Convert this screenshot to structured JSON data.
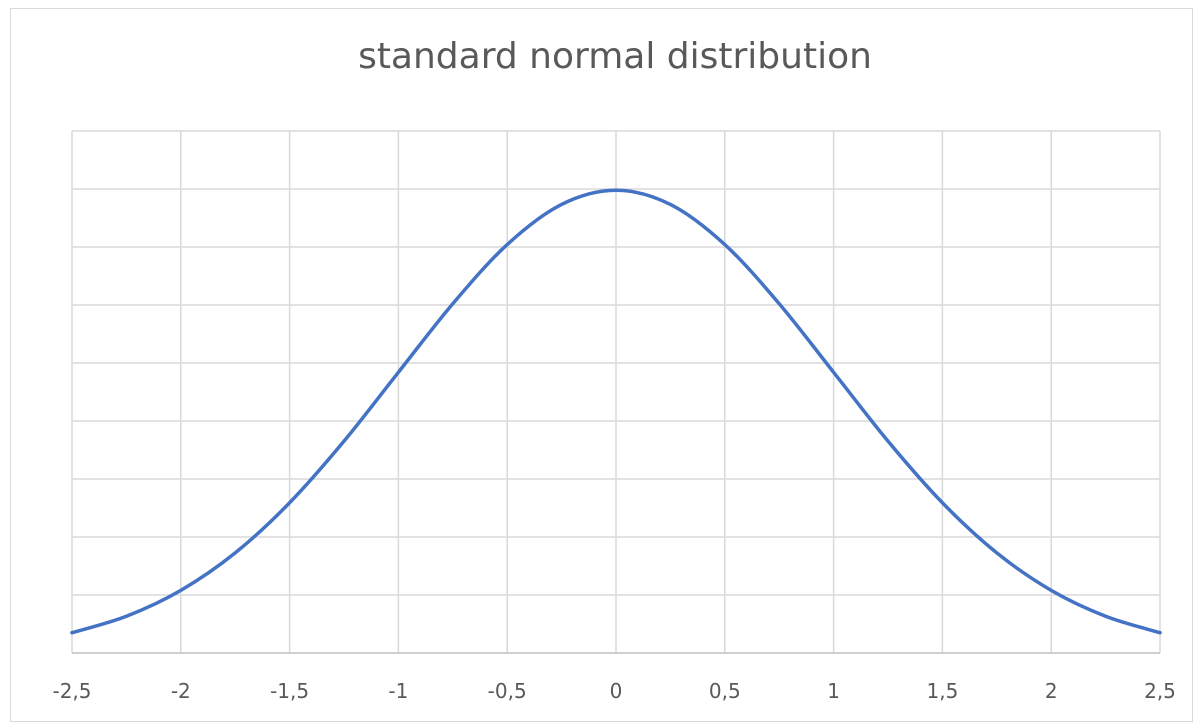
{
  "chart_data": {
    "type": "line",
    "title": "standard normal distribution",
    "xlabel": "",
    "ylabel": "",
    "x_tick_labels": [
      "-2,5",
      "-2",
      "-1,5",
      "-1",
      "-0,5",
      "0",
      "0,5",
      "1",
      "1,5",
      "2",
      "2,5"
    ],
    "xlim": [
      -2.5,
      2.5
    ],
    "ylim": [
      0,
      0.45
    ],
    "y_gridline_step": 0.05,
    "grid": true,
    "legend": "none",
    "series": [
      {
        "color": "#4472c4",
        "x": [
          -2.5,
          -2.25,
          -2,
          -1.75,
          -1.5,
          -1.25,
          -1,
          -0.75,
          -0.5,
          -0.25,
          0,
          0.25,
          0.5,
          0.75,
          1,
          1.25,
          1.5,
          1.75,
          2,
          2.25,
          2.5
        ],
        "y": [
          0.0175,
          0.0317,
          0.054,
          0.0863,
          0.1295,
          0.1826,
          0.242,
          0.3011,
          0.3521,
          0.3867,
          0.3989,
          0.3867,
          0.3521,
          0.3011,
          0.242,
          0.1826,
          0.1295,
          0.0863,
          0.054,
          0.0317,
          0.0175
        ]
      }
    ]
  }
}
